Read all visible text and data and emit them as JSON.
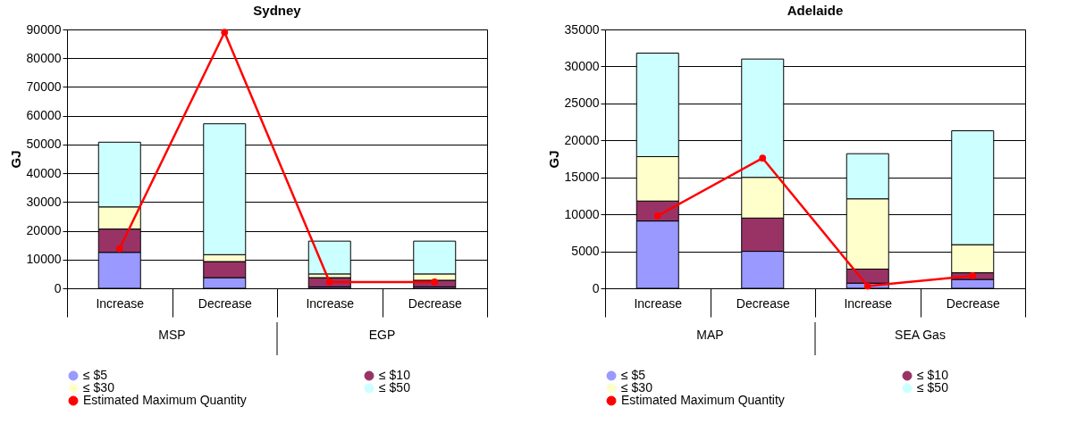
{
  "chart_data": [
    {
      "type": "bar",
      "title": "Sydney",
      "ylabel": "GJ",
      "stacked": true,
      "grid": "y",
      "legend": "bottom",
      "marker": "circle",
      "categories": [
        "Increase",
        "Decrease",
        "Increase",
        "Decrease"
      ],
      "annotations": [
        "MSP",
        "EGP"
      ],
      "ylim": [
        0,
        90000
      ],
      "yticks": [
        0,
        10000,
        20000,
        30000,
        40000,
        50000,
        60000,
        70000,
        80000,
        90000
      ],
      "series": [
        {
          "name": "≤ $5",
          "color": "#9999ff",
          "values": [
            12500,
            3700,
            500,
            500
          ]
        },
        {
          "name": "≤ $10",
          "color": "#993366",
          "values": [
            8100,
            5600,
            3200,
            2300
          ]
        },
        {
          "name": "≤ $30",
          "color": "#ffffcc",
          "values": [
            7700,
            2400,
            1300,
            2200
          ]
        },
        {
          "name": "≤ $50",
          "color": "#ccffff",
          "values": [
            22500,
            45500,
            11400,
            11400
          ]
        },
        {
          "name": "Estimated Maximum Quantity",
          "type": "line",
          "color": "#ff0000",
          "values": [
            13800,
            89000,
            2200,
            2200
          ]
        }
      ]
    },
    {
      "type": "bar",
      "title": "Adelaide",
      "ylabel": "GJ",
      "stacked": true,
      "grid": "y",
      "legend": "bottom",
      "marker": "circle",
      "categories": [
        "Increase",
        "Decrease",
        "Increase",
        "Decrease"
      ],
      "annotations": [
        "MAP",
        "SEA Gas"
      ],
      "ylim": [
        0,
        35000
      ],
      "yticks": [
        0,
        5000,
        10000,
        15000,
        20000,
        25000,
        30000,
        35000
      ],
      "series": [
        {
          "name": "≤ $5",
          "color": "#9999ff",
          "values": [
            9100,
            5000,
            700,
            1200
          ]
        },
        {
          "name": "≤ $10",
          "color": "#993366",
          "values": [
            2700,
            4500,
            1900,
            900
          ]
        },
        {
          "name": "≤ $30",
          "color": "#ffffcc",
          "values": [
            6000,
            5500,
            9500,
            3800
          ]
        },
        {
          "name": "≤ $50",
          "color": "#ccffff",
          "values": [
            14000,
            16000,
            6100,
            15400
          ]
        },
        {
          "name": "Estimated Maximum Quantity",
          "type": "line",
          "color": "#ff0000",
          "values": [
            9800,
            17600,
            300,
            1700
          ]
        }
      ]
    }
  ]
}
